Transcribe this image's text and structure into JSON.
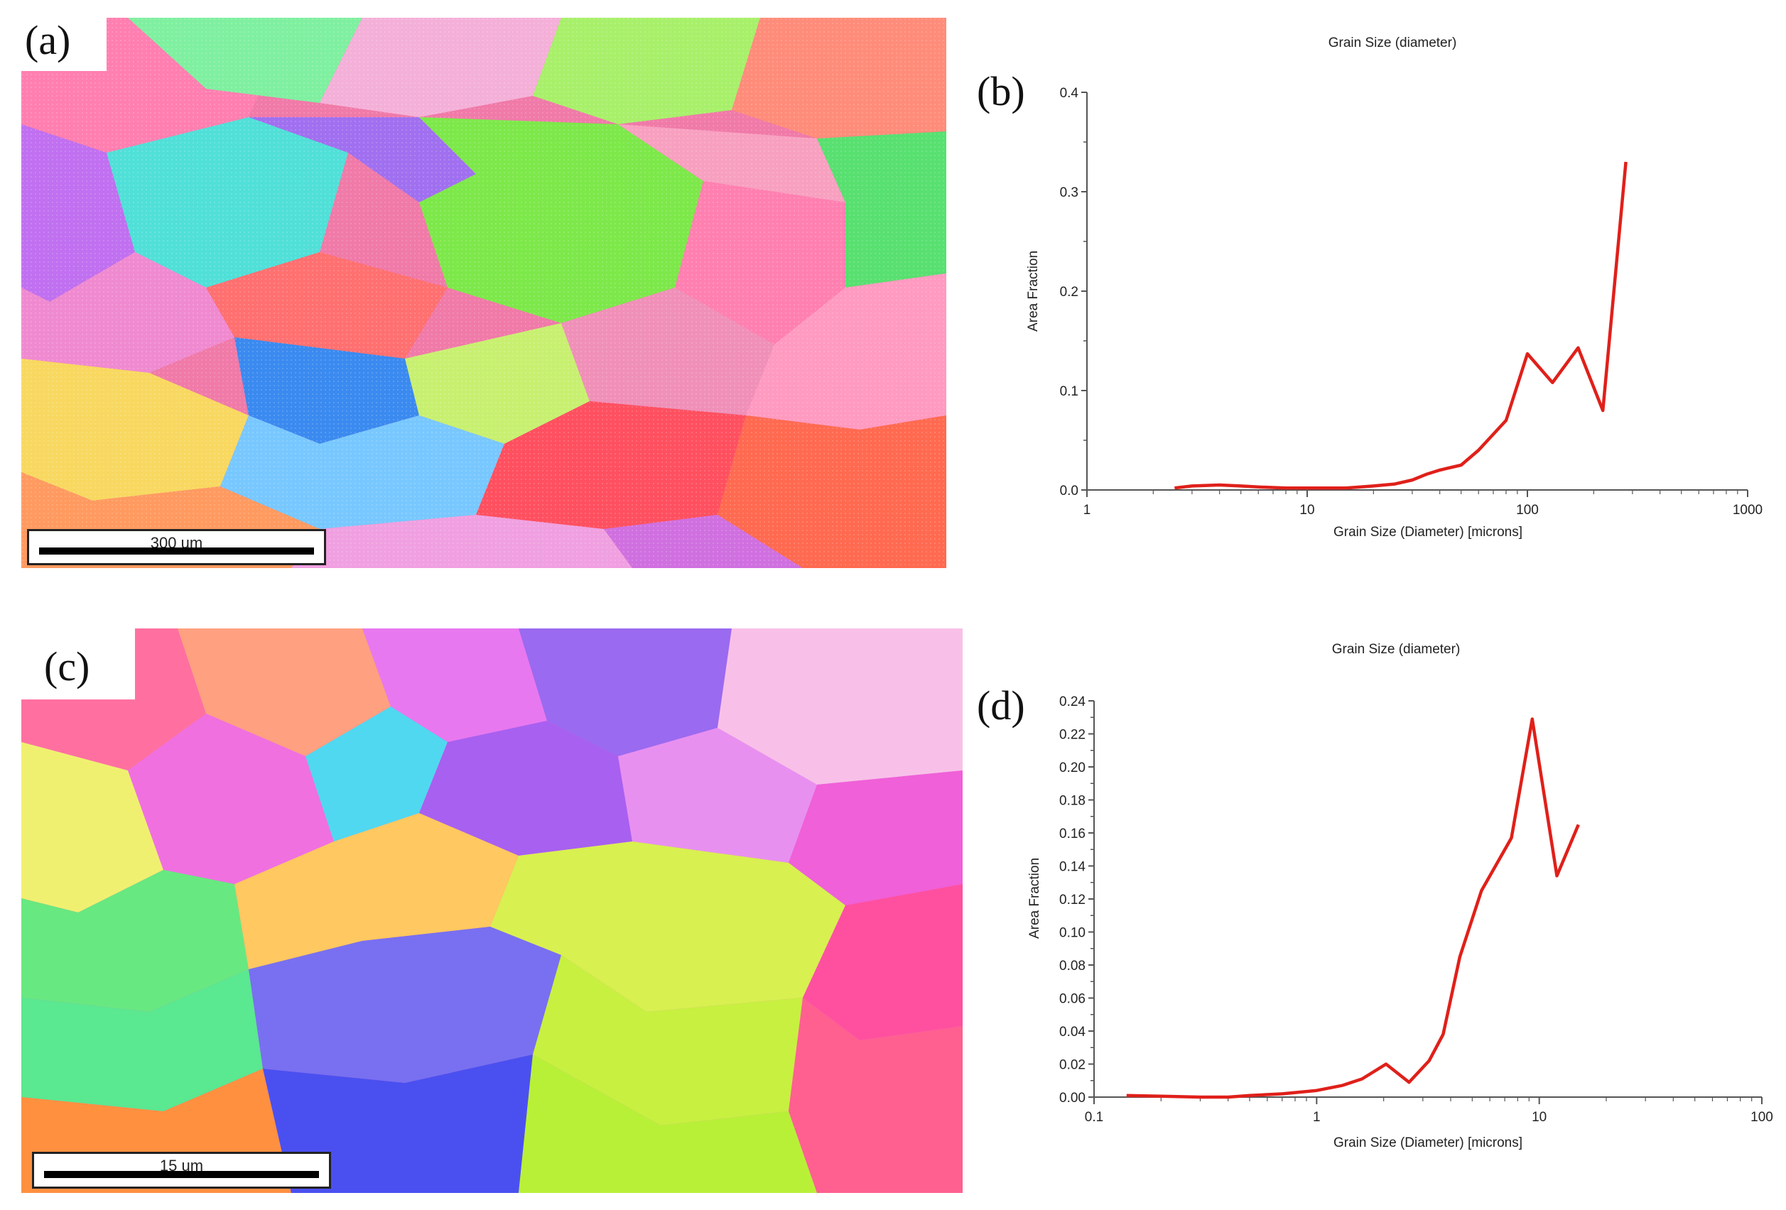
{
  "panels": {
    "a": {
      "label": "(a)",
      "scale_text": "300 um"
    },
    "b": {
      "label": "(b)"
    },
    "c": {
      "label": "(c)",
      "scale_text": "15 um"
    },
    "d": {
      "label": "(d)"
    }
  },
  "colors": {
    "line": "#e0201a",
    "axis": "#555555"
  },
  "chart_data": [
    {
      "id": "b",
      "type": "line",
      "title": "Grain Size (diameter)",
      "xlabel": "Grain Size (Diameter) [microns]",
      "ylabel": "Area Fraction",
      "xscale": "log",
      "xlim": [
        1,
        1000
      ],
      "ylim": [
        0,
        0.4
      ],
      "xticks": [
        1,
        10,
        100,
        1000
      ],
      "xtick_labels": [
        "1",
        "10",
        "100",
        "1000"
      ],
      "yticks": [
        0,
        0.1,
        0.2,
        0.3,
        0.4
      ],
      "ytick_labels": [
        "0.0",
        "0.1",
        "0.2",
        "0.3",
        "0.4"
      ],
      "series": [
        {
          "name": "Grain Size (diameter)",
          "x": [
            2.5,
            3,
            4,
            5,
            6,
            8,
            10,
            15,
            20,
            25,
            30,
            35,
            40,
            50,
            60,
            80,
            100,
            130,
            170,
            220,
            280
          ],
          "y": [
            0.002,
            0.004,
            0.005,
            0.004,
            0.003,
            0.002,
            0.002,
            0.002,
            0.004,
            0.006,
            0.01,
            0.016,
            0.02,
            0.025,
            0.04,
            0.07,
            0.137,
            0.108,
            0.143,
            0.08,
            0.33
          ]
        }
      ]
    },
    {
      "id": "d",
      "type": "line",
      "title": "Grain Size (diameter)",
      "xlabel": "Grain Size (Diameter) [microns]",
      "ylabel": "Area Fraction",
      "xscale": "log",
      "xlim": [
        0.1,
        100
      ],
      "ylim": [
        0,
        0.24
      ],
      "xticks": [
        0.1,
        1,
        10,
        100
      ],
      "xtick_labels": [
        "0.1",
        "1",
        "10",
        "100"
      ],
      "yticks": [
        0,
        0.02,
        0.04,
        0.06,
        0.08,
        0.1,
        0.12,
        0.14,
        0.16,
        0.18,
        0.2,
        0.22,
        0.24
      ],
      "ytick_labels": [
        "0.00",
        "0.02",
        "0.04",
        "0.06",
        "0.08",
        "0.10",
        "0.12",
        "0.14",
        "0.16",
        "0.18",
        "0.20",
        "0.22",
        "0.24"
      ],
      "series": [
        {
          "name": "Grain Size (diameter)",
          "x": [
            0.14,
            0.2,
            0.3,
            0.4,
            0.5,
            0.7,
            1.0,
            1.3,
            1.6,
            2.05,
            2.6,
            3.2,
            3.7,
            4.4,
            5.5,
            7.5,
            9.3,
            12,
            15
          ],
          "y": [
            0.001,
            0.0005,
            0.0,
            0.0,
            0.001,
            0.002,
            0.004,
            0.007,
            0.011,
            0.02,
            0.009,
            0.022,
            0.038,
            0.085,
            0.125,
            0.157,
            0.229,
            0.134,
            0.165
          ]
        }
      ]
    }
  ]
}
